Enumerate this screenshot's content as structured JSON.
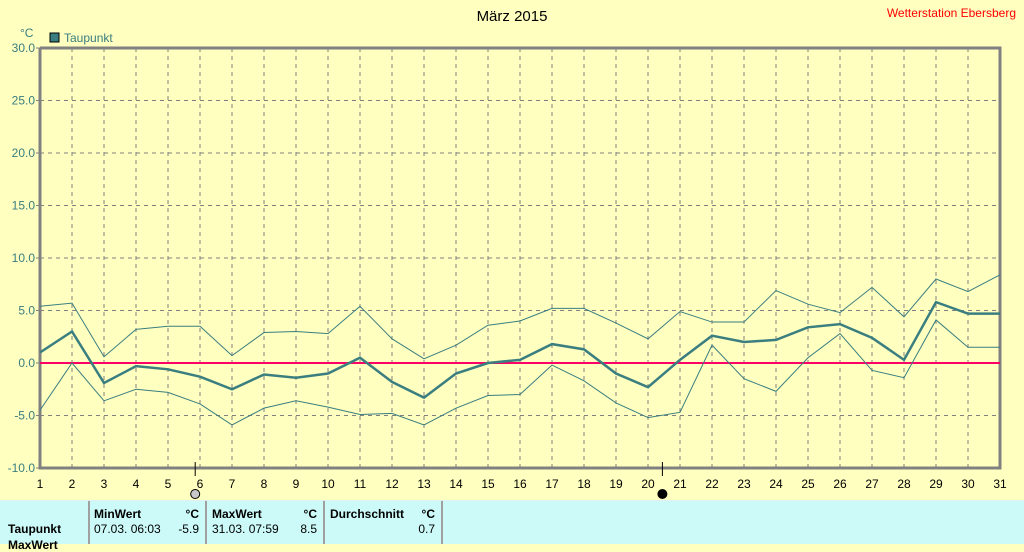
{
  "header": {
    "title": "März 2015",
    "station": "Wetterstation Ebersberg"
  },
  "chart_data": {
    "type": "line",
    "title": "März 2015",
    "ylabel": "°C",
    "legend": [
      {
        "name": "Taupunkt",
        "color": "#3a7e80"
      }
    ],
    "legend_position": "top-left",
    "x": [
      1,
      2,
      3,
      4,
      5,
      6,
      7,
      8,
      9,
      10,
      11,
      12,
      13,
      14,
      15,
      16,
      17,
      18,
      19,
      20,
      21,
      22,
      23,
      24,
      25,
      26,
      27,
      28,
      29,
      30,
      31
    ],
    "xlim": [
      1,
      31
    ],
    "ylim": [
      -10,
      30
    ],
    "yticks": [
      "30.0",
      "25.0",
      "20.0",
      "15.0",
      "10.0",
      "5.0",
      "0.0",
      "-5.0",
      "-10.0"
    ],
    "grid": true,
    "reference_line": {
      "y": 0,
      "color": "#ff0066"
    },
    "series": [
      {
        "name": "Taupunkt",
        "role": "mean",
        "values": [
          1.0,
          3.0,
          -1.9,
          -0.3,
          -0.6,
          -1.3,
          -2.5,
          -1.1,
          -1.4,
          -1.0,
          0.5,
          -1.8,
          -3.3,
          -1.0,
          0.0,
          0.3,
          1.8,
          1.3,
          -1.0,
          -2.3,
          0.3,
          2.6,
          2.0,
          2.2,
          3.4,
          3.7,
          2.4,
          0.3,
          5.8,
          4.7,
          4.7
        ]
      },
      {
        "role": "max",
        "values": [
          5.4,
          5.7,
          0.6,
          3.2,
          3.5,
          3.5,
          0.7,
          2.9,
          3.0,
          2.8,
          5.4,
          2.3,
          0.4,
          1.7,
          3.6,
          4.0,
          5.2,
          5.2,
          3.8,
          2.3,
          4.9,
          3.9,
          3.9,
          6.9,
          5.6,
          4.8,
          7.2,
          4.4,
          8.0,
          6.8,
          8.4
        ]
      },
      {
        "role": "min",
        "values": [
          -4.5,
          0.0,
          -3.6,
          -2.5,
          -2.8,
          -3.9,
          -5.9,
          -4.3,
          -3.6,
          -4.2,
          -4.9,
          -4.8,
          -5.9,
          -4.3,
          -3.1,
          -3.0,
          -0.2,
          -1.7,
          -3.8,
          -5.2,
          -4.7,
          1.7,
          -1.5,
          -2.7,
          0.5,
          2.8,
          -0.7,
          -1.4,
          4.1,
          1.5,
          1.5
        ]
      }
    ],
    "moon_phases": [
      {
        "day": 5.85,
        "phase": "full-moon"
      },
      {
        "day": 20.45,
        "phase": "new-moon"
      }
    ],
    "colors": {
      "background": "#ffffc0",
      "series": "#3a7e80",
      "zero": "#ff0066",
      "grid": "#808080"
    }
  },
  "table": {
    "headers": {
      "min": "MinWert",
      "max": "MaxWert",
      "avg": "Durchschnitt",
      "unit": "°C"
    },
    "rows": [
      {
        "label": "Taupunkt",
        "min_time": "07.03.  06:03",
        "min": "-5.9",
        "max_time": "31.03.  07:59",
        "max": "8.5",
        "avg": "0.7"
      }
    ],
    "next_row_label": "MaxWert"
  }
}
